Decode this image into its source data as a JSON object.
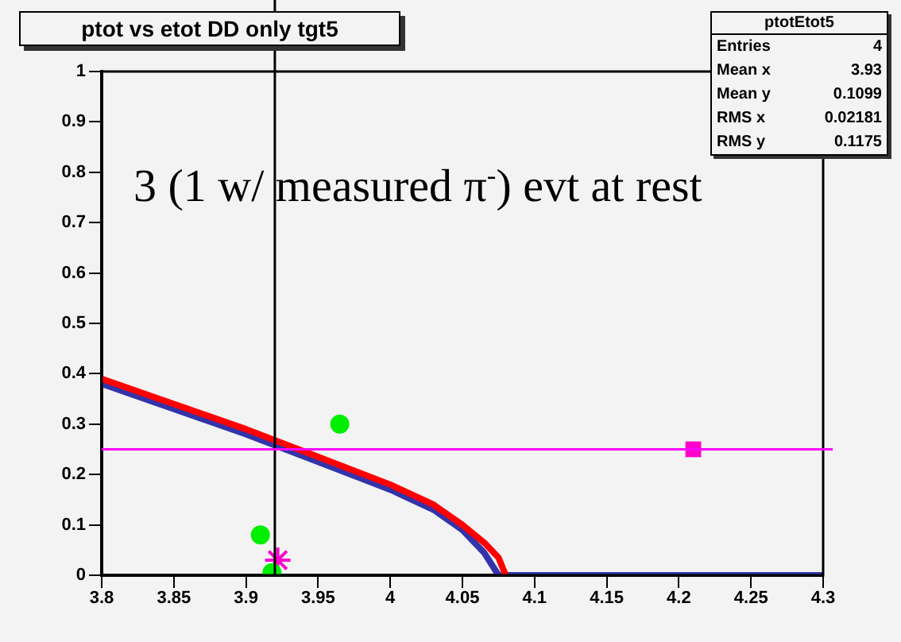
{
  "chart_data": {
    "type": "scatter",
    "title": "ptot vs etot DD only tgt5",
    "annotations": [
      "3 (1 w/ measured π$^{-}$) evt at rest",
      "ptotEtot5",
      "Entries 4",
      "Mean x 3.93",
      "Mean y 0.1099",
      "RMS x 0.02181",
      "RMS y 0.1175"
    ],
    "series": [
      {
        "type": "line",
        "color": "#ff0000",
        "marker": "none",
        "x": [
          3.8,
          3.85,
          3.9,
          3.95,
          4.0,
          4.03,
          4.05,
          4.065,
          4.075,
          4.08
        ],
        "values": [
          0.39,
          0.34,
          0.29,
          0.235,
          0.18,
          0.14,
          0.1,
          0.065,
          0.035,
          0
        ]
      },
      {
        "type": "line",
        "color": "#3333aa",
        "marker": "none",
        "x": [
          3.8,
          3.85,
          3.9,
          3.95,
          4.0,
          4.03,
          4.05,
          4.065,
          4.075,
          4.3
        ],
        "values": [
          0.38,
          0.33,
          0.28,
          0.225,
          0.17,
          0.13,
          0.09,
          0.045,
          0,
          0
        ]
      },
      {
        "type": "scatter",
        "color": "#00ee00",
        "marker": "circle",
        "x": [
          3.91,
          3.965,
          3.918
        ],
        "values": [
          0.08,
          0.3,
          0.005
        ]
      },
      {
        "type": "scatter",
        "color": "#ff00cc",
        "marker": "cross",
        "x": [
          3.922
        ],
        "values": [
          0.03
        ]
      },
      {
        "type": "scatter",
        "color": "#ff00cc",
        "marker": "square",
        "x": [
          4.21
        ],
        "values": [
          0.25
        ]
      }
    ],
    "xlim": [
      3.8,
      4.3
    ],
    "xticks": [
      3.8,
      3.85,
      3.9,
      3.95,
      4,
      4.05,
      4.1,
      4.15,
      4.2,
      4.25,
      4.3
    ],
    "ylim": [
      0,
      1
    ],
    "yticks": [
      0,
      0.1,
      0.2,
      0.3,
      0.4,
      0.5,
      0.6,
      0.7,
      0.8,
      0.9,
      1
    ],
    "ref_lines": [
      {
        "axis": "x",
        "value": 3.92,
        "color": "#000000"
      },
      {
        "axis": "y",
        "value": 0.25,
        "color": "#ff00ff"
      }
    ],
    "grid": false,
    "legend": false
  }
}
